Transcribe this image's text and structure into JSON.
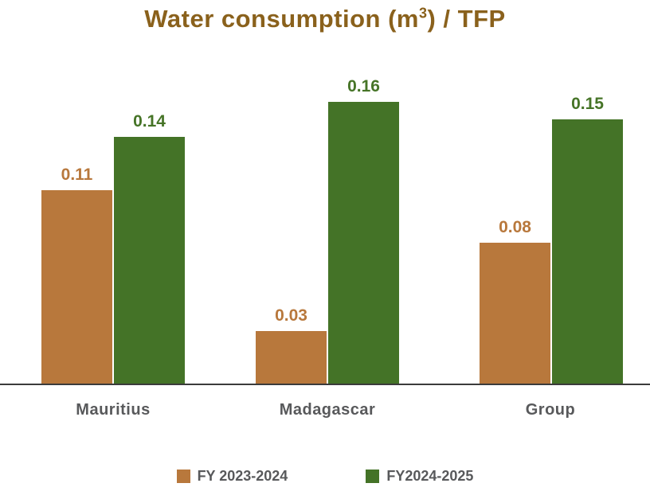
{
  "title": {
    "prefix": "Water consumption (m",
    "superscript": "3",
    "suffix": ") / TFP"
  },
  "chart_data": {
    "type": "bar",
    "title": "Water consumption (m³) / TFP",
    "categories": [
      "Mauritius",
      "Madagascar",
      "Group"
    ],
    "series": [
      {
        "name": "FY 2023-2024",
        "color": "#B8783C",
        "values": [
          0.11,
          0.03,
          0.08
        ]
      },
      {
        "name": "FY2024-2025",
        "color": "#447327",
        "values": [
          0.14,
          0.16,
          0.15
        ]
      }
    ],
    "xlabel": "",
    "ylabel": "",
    "ylim": [
      0,
      0.18
    ],
    "grid": false,
    "value_labels": true,
    "legend_position": "bottom"
  },
  "colors": {
    "title_text": "#8A611C",
    "axis_line": "#3B3B3B",
    "category_text": "#58595B",
    "legend_text": "#58595B",
    "bar_fy2023_2024": "#B8783C",
    "bar_fy2024_2025": "#447327"
  }
}
